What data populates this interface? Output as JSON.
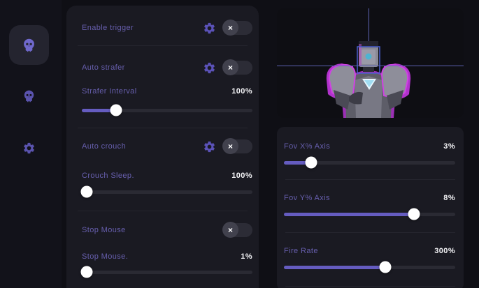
{
  "glyphs": {
    "toggle_off": "×"
  },
  "colors": {
    "accent": "#655cc0",
    "label": "#675fae",
    "value": "#f4f4f7",
    "panel": "#1a1a22",
    "background": "#0f0f15",
    "crosshair": "#5d63b5",
    "target_box": "#4a5fd0",
    "model_magenta": "#c23ad6"
  },
  "sidebar": {
    "items": [
      {
        "id": "aim",
        "icon": "skull-icon",
        "active": true
      },
      {
        "id": "player",
        "icon": "skull-icon",
        "active": false
      },
      {
        "id": "settings",
        "icon": "gear-icon",
        "active": false
      }
    ]
  },
  "left_panel": {
    "enable_trigger": {
      "label": "Enable trigger",
      "state": "off",
      "has_gear": true
    },
    "auto_strafer": {
      "label": "Auto strafer",
      "state": "off",
      "has_gear": true
    },
    "strafer_interval": {
      "label": "Strafer Interval",
      "value": "100%",
      "slider_percent": 20
    },
    "auto_crouch": {
      "label": "Auto crouch",
      "state": "off",
      "has_gear": true
    },
    "crouch_sleep": {
      "label": "Crouch Sleep.",
      "value": "100%",
      "slider_percent": 3
    },
    "stop_mouse_toggle": {
      "label": "Stop Mouse",
      "state": "off",
      "has_gear": false
    },
    "stop_mouse": {
      "label": "Stop Mouse.",
      "value": "1%",
      "slider_percent": 3
    }
  },
  "right_panel": {
    "fov_x": {
      "label": "Fov X% Axis",
      "value": "3%",
      "slider_percent": 16
    },
    "fov_y": {
      "label": "Fov Y% Axis",
      "value": "8%",
      "slider_percent": 76
    },
    "fire_rate": {
      "label": "Fire Rate",
      "value": "300%",
      "slider_percent": 59
    }
  }
}
